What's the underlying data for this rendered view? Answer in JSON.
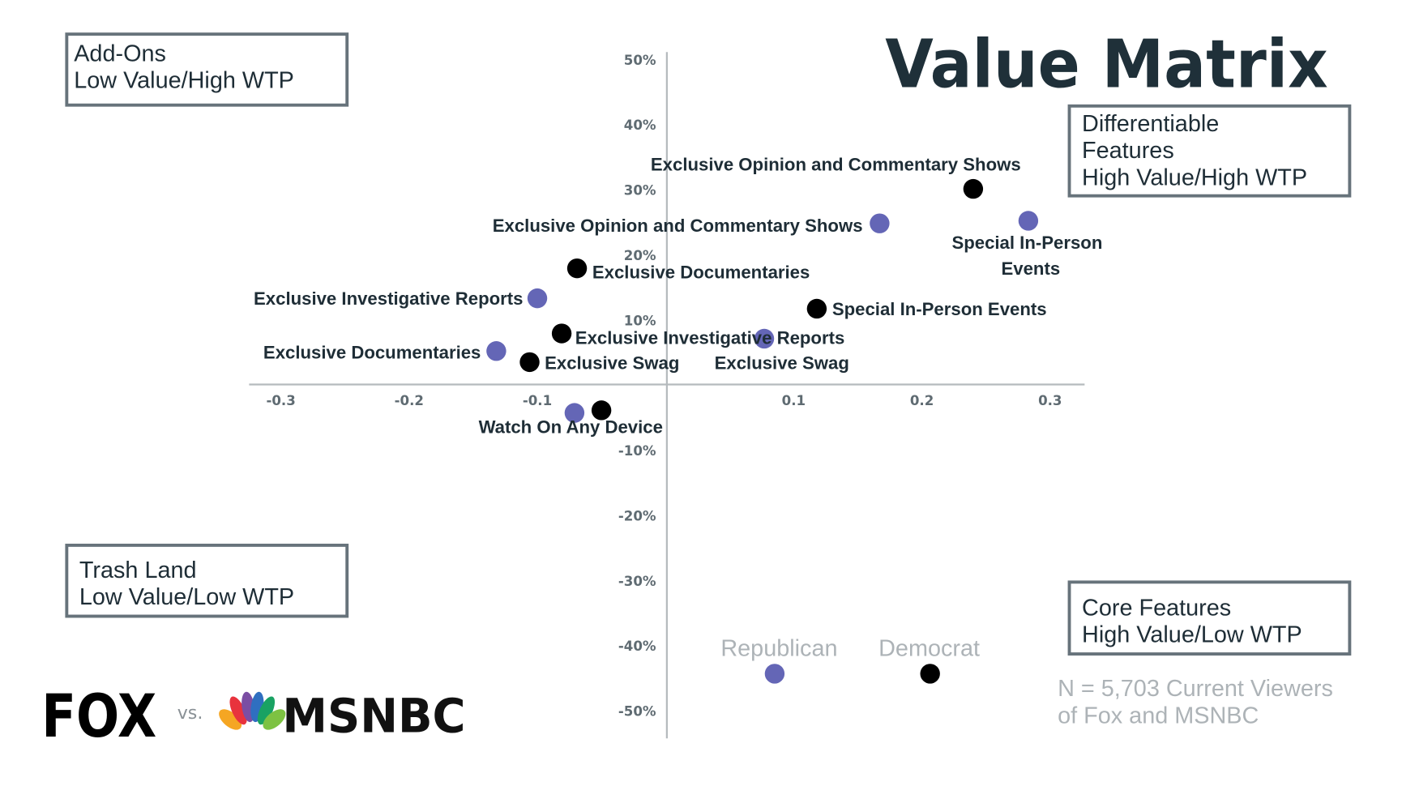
{
  "title": "Value Matrix",
  "quadrants": {
    "top_left": [
      "Add-Ons",
      "Low Value/High WTP"
    ],
    "top_right": [
      "Differentiable",
      "Features",
      "High Value/High WTP"
    ],
    "bottom_left": [
      "Trash Land",
      "Low Value/Low WTP"
    ],
    "bottom_right": [
      "Core Features",
      "High Value/Low WTP"
    ]
  },
  "footnote": [
    "N = 5,703 Current Viewers",
    "of Fox and MSNBC"
  ],
  "logos": {
    "left": "FOX",
    "vs": "vs.",
    "right": "MSNBC"
  },
  "colors": {
    "Republican": "#6466b6",
    "Democrat": "#000000",
    "text": "#1e2d36",
    "axis": "#b5babd"
  },
  "chart_data": {
    "type": "scatter",
    "title": "Value Matrix",
    "xlabel": "",
    "ylabel": "",
    "xlim": [
      -0.3,
      0.3
    ],
    "ylim": [
      -50,
      50
    ],
    "x_ticks": [
      "-0.3",
      "-0.2",
      "-0.1",
      "0.1",
      "0.2",
      "0.3"
    ],
    "x_tick_values": [
      -0.3,
      -0.2,
      -0.1,
      0.1,
      0.2,
      0.3
    ],
    "y_ticks": [
      "50%",
      "40%",
      "30%",
      "20%",
      "10%",
      "-10%",
      "-20%",
      "-30%",
      "-40%",
      "-50%"
    ],
    "y_tick_values": [
      50,
      40,
      30,
      20,
      10,
      -10,
      -20,
      -30,
      -40,
      -50
    ],
    "legend": [
      "Republican",
      "Democrat"
    ],
    "legend_placement": "bottom-center",
    "series": [
      {
        "name": "Republican",
        "points": [
          {
            "label": "Exclusive Opinion and Commentary Shows",
            "x": 0.167,
            "y": 24.8
          },
          {
            "label": "Special In-Person Events",
            "x": 0.283,
            "y": 25.2
          },
          {
            "label": "Exclusive Investigative Reports",
            "x": -0.1,
            "y": 13.3
          },
          {
            "label": "Exclusive Documentaries",
            "x": -0.132,
            "y": 5.2
          },
          {
            "label": "Exclusive Swag",
            "x": 0.077,
            "y": 7.1
          },
          {
            "label": "",
            "x": -0.071,
            "y": -4.3
          }
        ]
      },
      {
        "name": "Democrat",
        "points": [
          {
            "label": "Exclusive Opinion and Commentary Shows",
            "x": 0.24,
            "y": 30.1
          },
          {
            "label": "Exclusive Documentaries",
            "x": -0.069,
            "y": 17.9
          },
          {
            "label": "Special In-Person Events",
            "x": 0.118,
            "y": 11.7
          },
          {
            "label": "Exclusive Investigative Reports",
            "x": -0.081,
            "y": 7.9
          },
          {
            "label": "Exclusive Swag",
            "x": -0.106,
            "y": 3.5
          },
          {
            "label": "Watch On Any Device",
            "x": -0.05,
            "y": -3.9
          }
        ]
      }
    ]
  }
}
